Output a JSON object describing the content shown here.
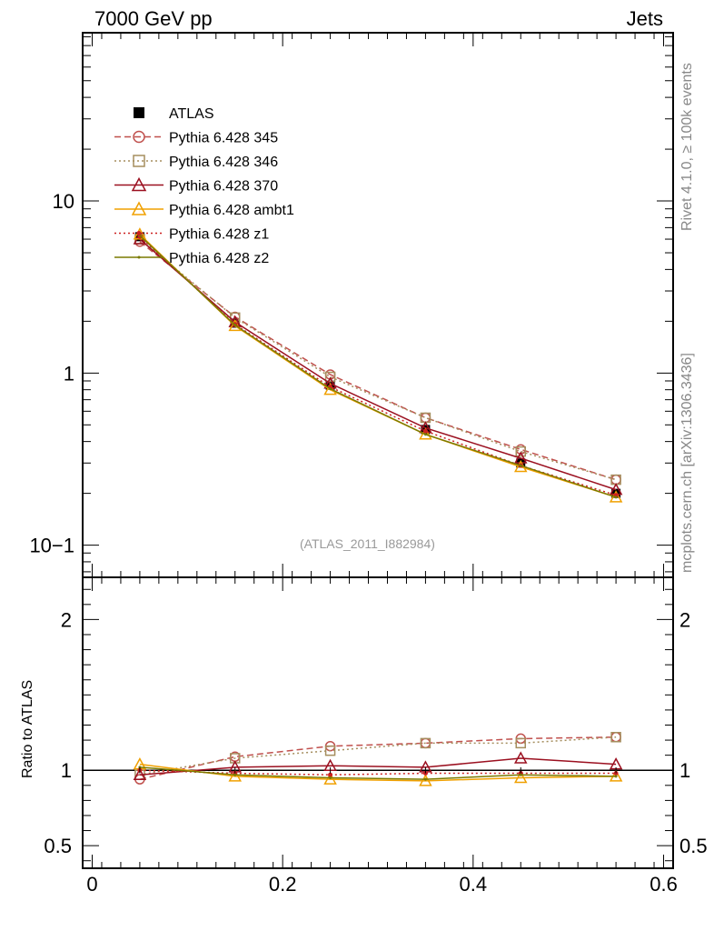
{
  "header": {
    "left": "7000 GeV pp",
    "right": "Jets"
  },
  "side": {
    "rivet": "Rivet 4.1.0, ≥ 100k events",
    "mcplots": "mcplots.cern.ch [arXiv:1306.3436]"
  },
  "watermark": "(ATLAS_2011_I882984)",
  "ratio_ylabel": "Ratio to ATLAS",
  "chart_data": {
    "type": "line",
    "x": [
      0.05,
      0.15,
      0.25,
      0.35,
      0.45,
      0.55
    ],
    "xlim": [
      -0.01,
      0.61
    ],
    "xticks": [
      "0",
      "0.2",
      "0.4",
      "0.6"
    ],
    "xtick_values": [
      0,
      0.2,
      0.4,
      0.6
    ],
    "main": {
      "yscale": "log",
      "ylim": [
        0.065,
        95
      ],
      "yticks": [
        "10−1",
        "1",
        "10"
      ],
      "ytick_values": [
        0.1,
        1,
        10
      ]
    },
    "ratio": {
      "ylim": [
        0.35,
        2.28
      ],
      "yticks": [
        "0.5",
        "1",
        "2"
      ],
      "ytick_values": [
        0.5,
        1,
        2
      ],
      "reference": 1
    },
    "series": [
      {
        "name": "ATLAS",
        "color": "#000000",
        "marker": "square-filled",
        "dash": "none",
        "line": false,
        "values": [
          6.2,
          1.95,
          0.85,
          0.47,
          0.3,
          0.2
        ],
        "ratio": [
          1,
          1,
          1,
          1,
          1,
          1
        ]
      },
      {
        "name": "Pythia 6.428 345",
        "color": "#c0504d",
        "marker": "circle-open",
        "dash": "7,4",
        "line": true,
        "values": [
          5.8,
          2.12,
          0.98,
          0.55,
          0.36,
          0.24
        ],
        "ratio": [
          0.94,
          1.09,
          1.16,
          1.18,
          1.21,
          1.22
        ]
      },
      {
        "name": "Pythia 6.428 346",
        "color": "#a58e5e",
        "marker": "square-open",
        "dash": "2,3",
        "line": true,
        "values": [
          6.0,
          2.1,
          0.95,
          0.55,
          0.35,
          0.24
        ],
        "ratio": [
          0.97,
          1.08,
          1.13,
          1.18,
          1.18,
          1.22
        ]
      },
      {
        "name": "Pythia 6.428 370",
        "color": "#9b1020",
        "marker": "triangle-open",
        "dash": "none",
        "line": true,
        "values": [
          6.0,
          1.98,
          0.87,
          0.48,
          0.32,
          0.21
        ],
        "ratio": [
          0.97,
          1.02,
          1.03,
          1.02,
          1.08,
          1.04
        ]
      },
      {
        "name": "Pythia 6.428 ambt1",
        "color": "#f0a000",
        "marker": "triangle-open",
        "dash": "none",
        "line": true,
        "values": [
          6.4,
          1.88,
          0.8,
          0.44,
          0.285,
          0.19
        ],
        "ratio": [
          1.04,
          0.96,
          0.94,
          0.93,
          0.95,
          0.96
        ]
      },
      {
        "name": "Pythia 6.428 z1",
        "color": "#cc2020",
        "marker": "filled-dot",
        "dash": "2,3",
        "line": true,
        "values": [
          6.2,
          1.92,
          0.83,
          0.46,
          0.29,
          0.195
        ],
        "ratio": [
          1.0,
          0.98,
          0.97,
          0.98,
          0.98,
          0.98
        ]
      },
      {
        "name": "Pythia 6.428 z2",
        "color": "#7a7a00",
        "marker": "small-dot",
        "dash": "none",
        "line": true,
        "values": [
          6.3,
          1.9,
          0.81,
          0.44,
          0.29,
          0.19
        ],
        "ratio": [
          1.02,
          0.97,
          0.95,
          0.94,
          0.97,
          0.96
        ]
      }
    ]
  }
}
